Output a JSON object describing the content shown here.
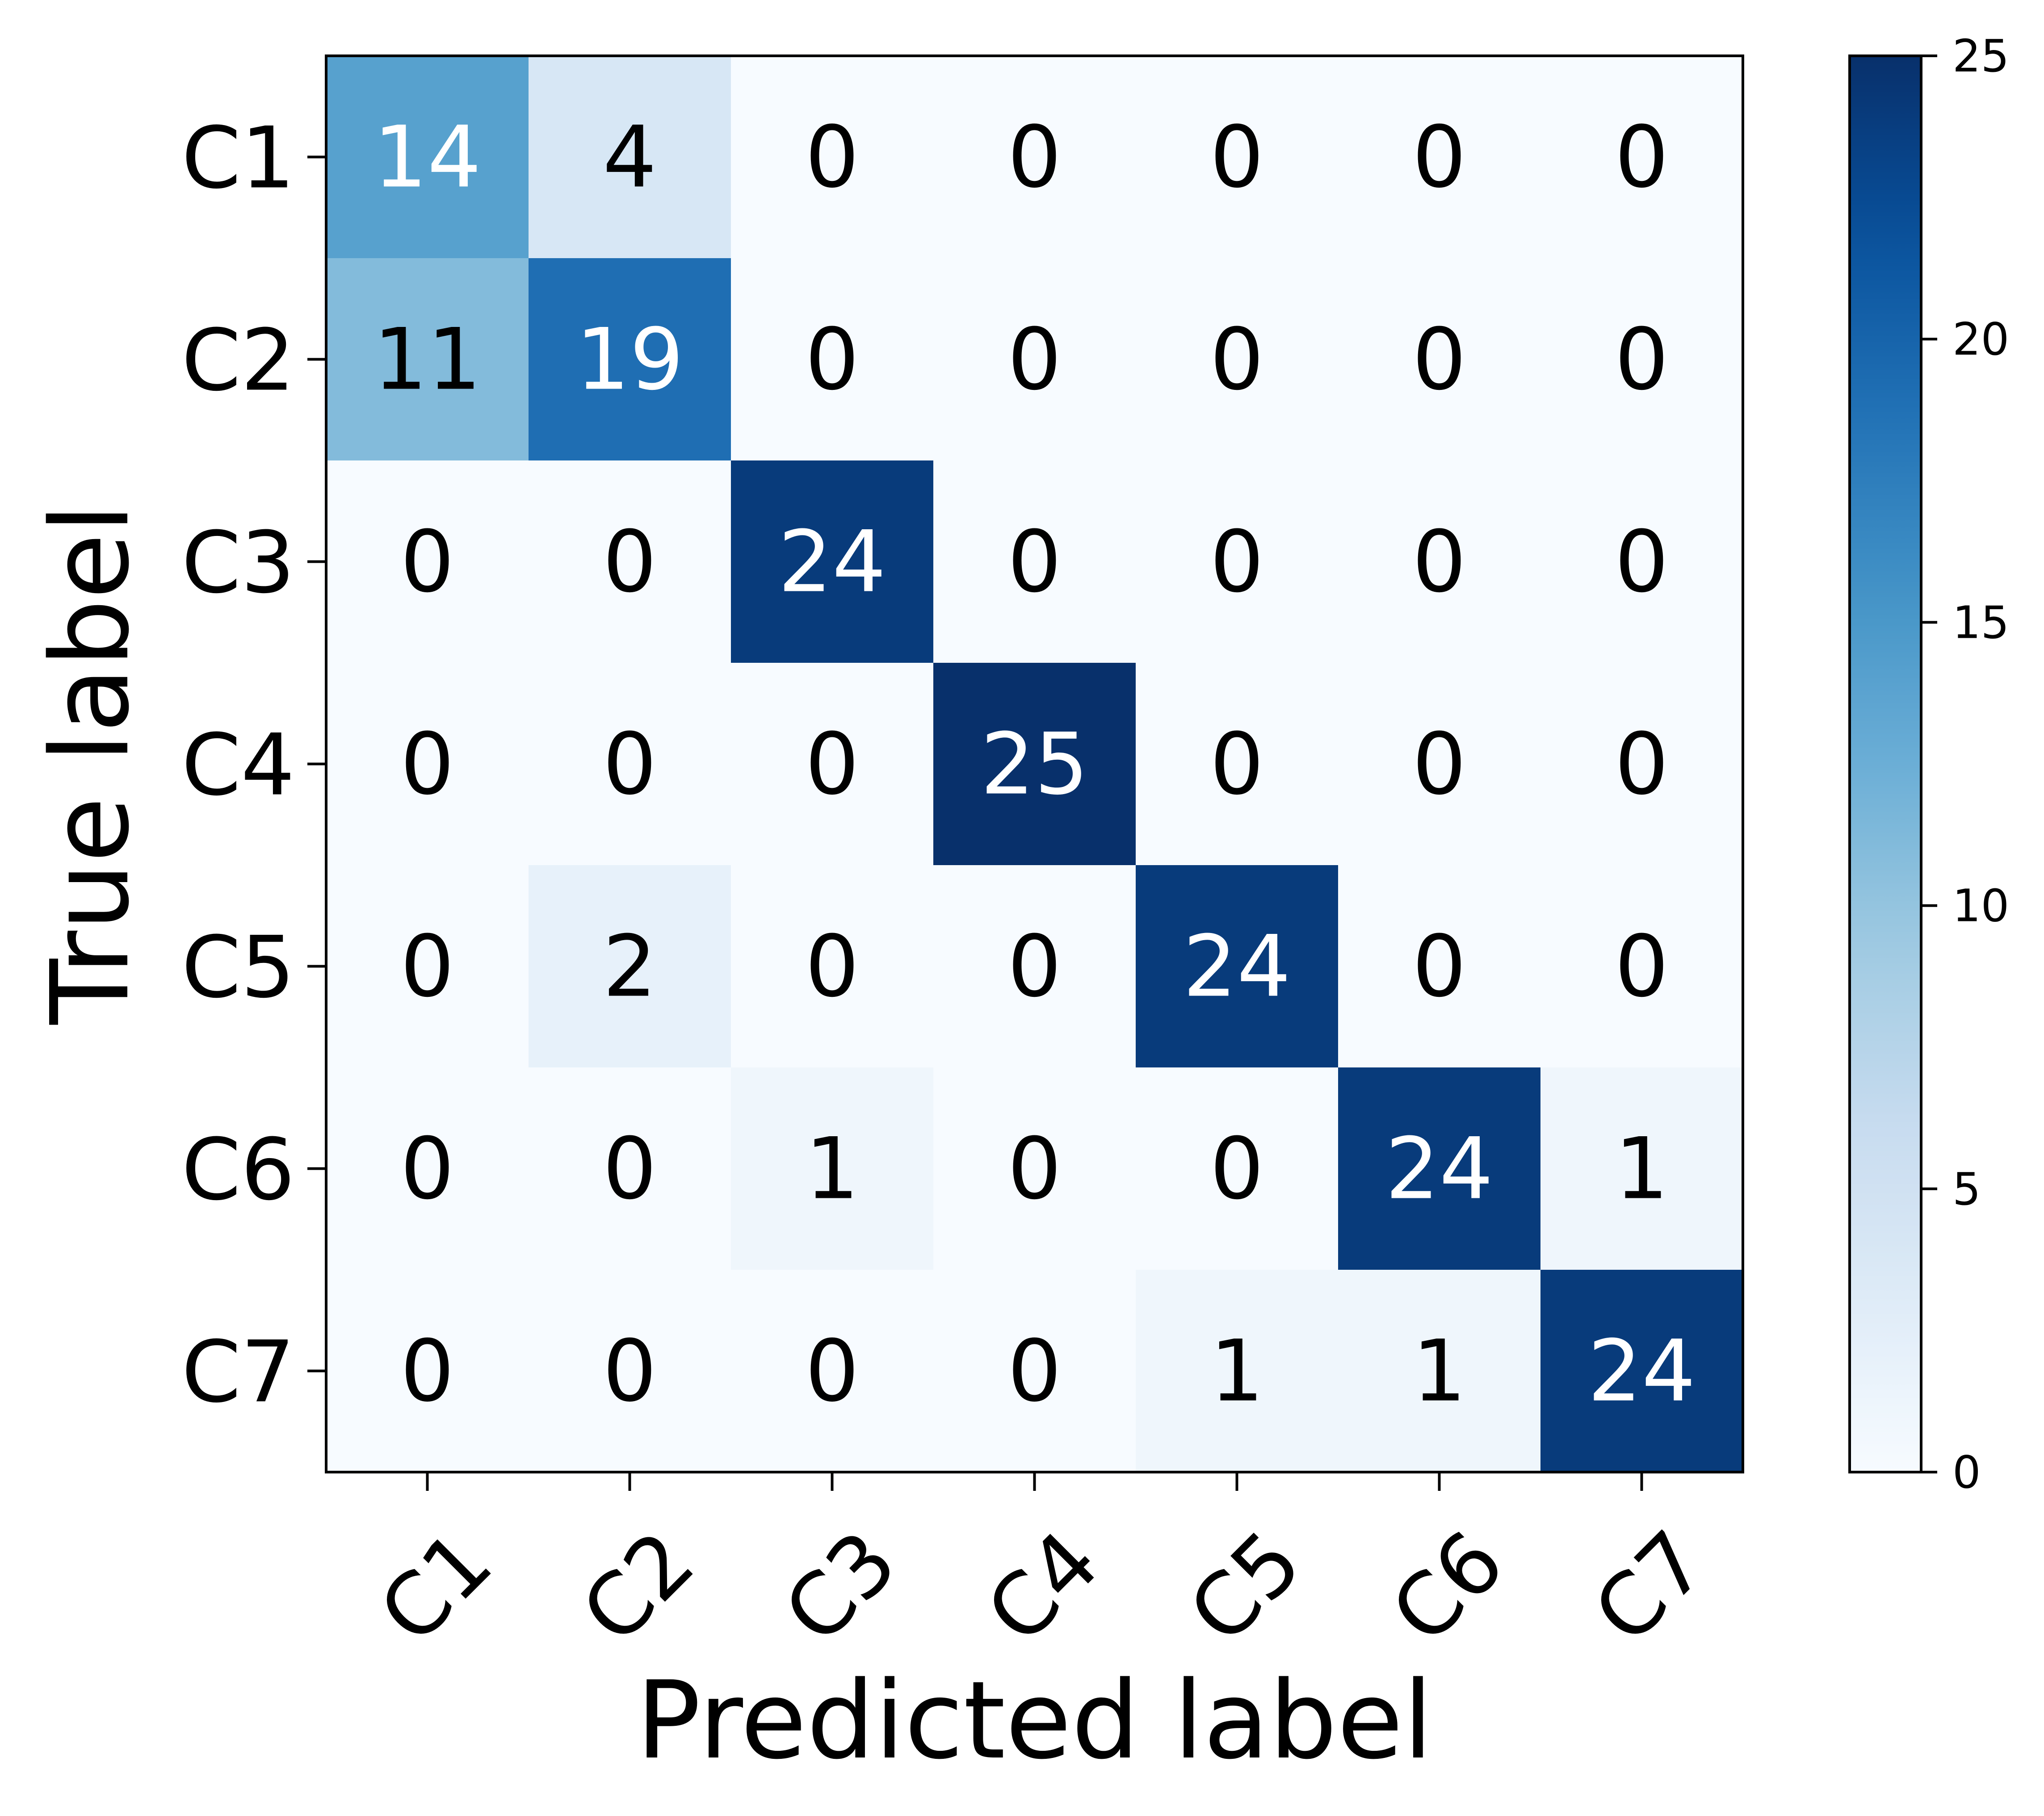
{
  "chart_data": {
    "type": "heatmap",
    "title": "",
    "xlabel": "Predicted label",
    "ylabel": "True label",
    "x_categories": [
      "C1",
      "C2",
      "C3",
      "C4",
      "C5",
      "C6",
      "C7"
    ],
    "y_categories": [
      "C1",
      "C2",
      "C3",
      "C4",
      "C5",
      "C6",
      "C7"
    ],
    "values": [
      [
        14,
        4,
        0,
        0,
        0,
        0,
        0
      ],
      [
        11,
        19,
        0,
        0,
        0,
        0,
        0
      ],
      [
        0,
        0,
        24,
        0,
        0,
        0,
        0
      ],
      [
        0,
        0,
        0,
        25,
        0,
        0,
        0
      ],
      [
        0,
        2,
        0,
        0,
        24,
        0,
        0
      ],
      [
        0,
        0,
        1,
        0,
        0,
        24,
        1
      ],
      [
        0,
        0,
        0,
        0,
        1,
        1,
        24
      ]
    ],
    "colorbar": {
      "range": [
        0,
        25
      ],
      "ticks": [
        0,
        5,
        10,
        15,
        20,
        25
      ]
    },
    "colormap": "Blues",
    "x_tick_rotation": "45°",
    "grid": false
  }
}
